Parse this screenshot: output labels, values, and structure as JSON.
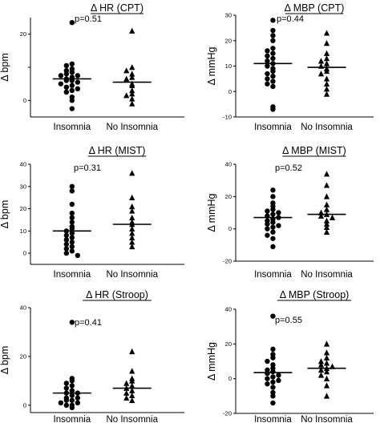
{
  "chart_data": [
    {
      "type": "scatter",
      "title": "Δ HR (CPT)",
      "ylabel": "Δ bpm",
      "pvalue": "p=0.51",
      "categories": [
        "Insomnia",
        "No Insomnia"
      ],
      "ylim": [
        -5,
        25
      ],
      "yticks": [
        0,
        10,
        20
      ],
      "ytick_labels": [
        "0",
        "",
        "20"
      ],
      "series": [
        {
          "category": "Insomnia",
          "marker": "circle",
          "values": [
            23.5,
            11,
            10.5,
            9.5,
            9,
            8.5,
            8,
            7.5,
            7.5,
            7,
            6.5,
            6,
            6,
            5.5,
            5,
            4.5,
            4,
            3.5,
            3,
            2.5,
            1,
            0,
            -2.5
          ],
          "mean": 6.5
        },
        {
          "category": "No Insomnia",
          "marker": "triangle",
          "values": [
            21,
            10,
            9,
            8,
            7,
            6.5,
            5,
            4.5,
            3,
            2,
            1.5,
            0.5,
            -1
          ],
          "mean": 5.5
        }
      ]
    },
    {
      "type": "scatter",
      "title": "Δ MBP (CPT)",
      "ylabel": "Δ mmHg",
      "pvalue": "p=0.44",
      "categories": [
        "Insomnia",
        "No Insomnia"
      ],
      "ylim": [
        -10,
        30
      ],
      "yticks": [
        -10,
        0,
        10,
        20,
        30
      ],
      "ytick_labels": [
        "-10",
        "0",
        "10",
        "20",
        "30"
      ],
      "series": [
        {
          "category": "Insomnia",
          "marker": "circle",
          "values": [
            28,
            24,
            22,
            20,
            17,
            16,
            15,
            14,
            13,
            12,
            11,
            10,
            9,
            8,
            7,
            6,
            5,
            4,
            3,
            2,
            -6,
            -7
          ],
          "mean": 11
        },
        {
          "category": "No Insomnia",
          "marker": "triangle",
          "values": [
            23,
            19,
            15,
            13,
            12,
            11,
            10,
            9,
            8,
            7,
            5,
            3,
            1,
            -1
          ],
          "mean": 9.5
        }
      ]
    },
    {
      "type": "scatter",
      "title": "Δ HR (MIST)",
      "ylabel": "Δ bpm",
      "pvalue": "p=0.31",
      "categories": [
        "Insomnia",
        "No Insomnia"
      ],
      "ylim": [
        -5,
        40
      ],
      "yticks": [
        0,
        10,
        20,
        30,
        40
      ],
      "ytick_labels": [
        "0",
        "10",
        "20",
        "30",
        "40"
      ],
      "series": [
        {
          "category": "Insomnia",
          "marker": "circle",
          "values": [
            30,
            28,
            22,
            18,
            16,
            14,
            12,
            11,
            10,
            9,
            8,
            7,
            6,
            5,
            4,
            3,
            2,
            1,
            0,
            -1
          ],
          "mean": 10
        },
        {
          "category": "No Insomnia",
          "marker": "triangle",
          "values": [
            36,
            25,
            21,
            19,
            16,
            14,
            13,
            11,
            9,
            7,
            5,
            3
          ],
          "mean": 13
        }
      ]
    },
    {
      "type": "scatter",
      "title": "Δ MBP (MIST)",
      "ylabel": "Δ mmHg",
      "pvalue": "p=0.52",
      "categories": [
        "Insomnia",
        "No Insomnia"
      ],
      "ylim": [
        -20,
        40
      ],
      "yticks": [
        -20,
        0,
        20,
        40
      ],
      "ytick_labels": [
        "-20",
        "0",
        "20",
        "40"
      ],
      "series": [
        {
          "category": "Insomnia",
          "marker": "circle",
          "values": [
            24,
            20,
            16,
            14,
            12,
            11,
            10,
            9,
            8,
            7,
            6,
            5,
            4,
            3,
            2,
            1,
            0,
            -2,
            -4,
            -6,
            -11
          ],
          "mean": 7
        },
        {
          "category": "No Insomnia",
          "marker": "triangle",
          "values": [
            34,
            27,
            20,
            15,
            12,
            10,
            9,
            8,
            7,
            5,
            3,
            1,
            -2
          ],
          "mean": 9
        }
      ]
    },
    {
      "type": "scatter",
      "title": "Δ HR (Stroop)",
      "ylabel": "Δ bpm",
      "pvalue": "p=0.41",
      "categories": [
        "Insomnia",
        "No Insomnia"
      ],
      "ylim": [
        -3,
        40
      ],
      "yticks": [
        0,
        20,
        40
      ],
      "ytick_labels": [
        "0",
        "20",
        "40"
      ],
      "series": [
        {
          "category": "Insomnia",
          "marker": "circle",
          "values": [
            34,
            11,
            10,
            9,
            8,
            7,
            6,
            5,
            5,
            4,
            3,
            3,
            2,
            2,
            1,
            1,
            0,
            0,
            -1
          ],
          "mean": 5
        },
        {
          "category": "No Insomnia",
          "marker": "triangle",
          "values": [
            22,
            14,
            11,
            10,
            9,
            8,
            7,
            6,
            5,
            4,
            3,
            2
          ],
          "mean": 7
        }
      ]
    },
    {
      "type": "scatter",
      "title": "Δ MBP (Stroop)",
      "ylabel": "Δ mmHg",
      "pvalue": "p=0.55",
      "categories": [
        "Insomnia",
        "No Insomnia"
      ],
      "ylim": [
        -20,
        40
      ],
      "yticks": [
        -20,
        0,
        20,
        40
      ],
      "ytick_labels": [
        "-20",
        "0",
        "20",
        "40"
      ],
      "series": [
        {
          "category": "Insomnia",
          "marker": "circle",
          "values": [
            36,
            17,
            14,
            12,
            10,
            8,
            6,
            5,
            4,
            3,
            2,
            1,
            0,
            -1,
            -2,
            -3,
            -5,
            -8,
            -10,
            -14
          ],
          "mean": 3.5
        },
        {
          "category": "No Insomnia",
          "marker": "triangle",
          "values": [
            20,
            15,
            12,
            10,
            9,
            8,
            7,
            6,
            5,
            4,
            2,
            0,
            -4,
            -10
          ],
          "mean": 6
        }
      ]
    }
  ]
}
